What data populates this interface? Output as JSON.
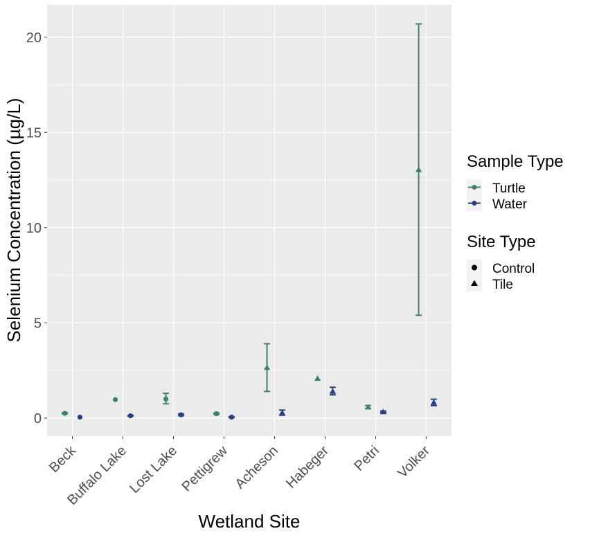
{
  "chart_data": {
    "type": "scatter",
    "xlabel": "Wetland Site",
    "ylabel": "Selenium Concentration (µg/L)",
    "categories": [
      "Beck",
      "Buffalo Lake",
      "Lost Lake",
      "Pettigrew",
      "Acheson",
      "Habeger",
      "Petri",
      "Volker"
    ],
    "ylim": [
      -0.95,
      21.7
    ],
    "yticks": [
      0,
      5,
      10,
      15,
      20
    ],
    "ytick_labels": [
      "0",
      "5",
      "10",
      "15",
      "20"
    ],
    "grid": true,
    "legend_position": "right",
    "legends": [
      {
        "title": "Sample Type",
        "entries": [
          {
            "label": "Turtle",
            "color": "#3d8369"
          },
          {
            "label": "Water",
            "color": "#263f82"
          }
        ]
      },
      {
        "title": "Site Type",
        "entries": [
          {
            "label": "Control",
            "shape": "circle"
          },
          {
            "label": "Tile",
            "shape": "triangle"
          }
        ]
      }
    ],
    "colors": {
      "Turtle": "#3d8369",
      "Water": "#263f82",
      "panel": "#ebebeb",
      "grid": "#ffffff"
    },
    "series": [
      {
        "sample": "Turtle",
        "site_type": "Control",
        "x": "Beck",
        "y": 0.25,
        "low": 0.22,
        "high": 0.28
      },
      {
        "sample": "Water",
        "site_type": "Control",
        "x": "Beck",
        "y": 0.05,
        "low": 0.04,
        "high": 0.06
      },
      {
        "sample": "Turtle",
        "site_type": "Control",
        "x": "Buffalo Lake",
        "y": 0.97,
        "low": 0.97,
        "high": 0.97
      },
      {
        "sample": "Water",
        "site_type": "Control",
        "x": "Buffalo Lake",
        "y": 0.12,
        "low": 0.1,
        "high": 0.14
      },
      {
        "sample": "Turtle",
        "site_type": "Control",
        "x": "Lost Lake",
        "y": 1.0,
        "low": 0.75,
        "high": 1.3
      },
      {
        "sample": "Water",
        "site_type": "Control",
        "x": "Lost Lake",
        "y": 0.17,
        "low": 0.12,
        "high": 0.22
      },
      {
        "sample": "Turtle",
        "site_type": "Control",
        "x": "Pettigrew",
        "y": 0.23,
        "low": 0.19,
        "high": 0.27
      },
      {
        "sample": "Water",
        "site_type": "Control",
        "x": "Pettigrew",
        "y": 0.05,
        "low": 0.03,
        "high": 0.07
      },
      {
        "sample": "Turtle",
        "site_type": "Tile",
        "x": "Acheson",
        "y": 2.65,
        "low": 1.4,
        "high": 3.9
      },
      {
        "sample": "Water",
        "site_type": "Tile",
        "x": "Acheson",
        "y": 0.28,
        "low": 0.15,
        "high": 0.42
      },
      {
        "sample": "Turtle",
        "site_type": "Tile",
        "x": "Habeger",
        "y": 2.08,
        "low": 2.08,
        "high": 2.08
      },
      {
        "sample": "Water",
        "site_type": "Tile",
        "x": "Habeger",
        "y": 1.4,
        "low": 1.22,
        "high": 1.62
      },
      {
        "sample": "Turtle",
        "site_type": "Tile",
        "x": "Petri",
        "y": 0.58,
        "low": 0.5,
        "high": 0.66
      },
      {
        "sample": "Water",
        "site_type": "Tile",
        "x": "Petri",
        "y": 0.33,
        "low": 0.29,
        "high": 0.37
      },
      {
        "sample": "Turtle",
        "site_type": "Tile",
        "x": "Volker",
        "y": 13.05,
        "low": 5.4,
        "high": 20.7
      },
      {
        "sample": "Water",
        "site_type": "Tile",
        "x": "Volker",
        "y": 0.82,
        "low": 0.65,
        "high": 0.99
      }
    ]
  }
}
